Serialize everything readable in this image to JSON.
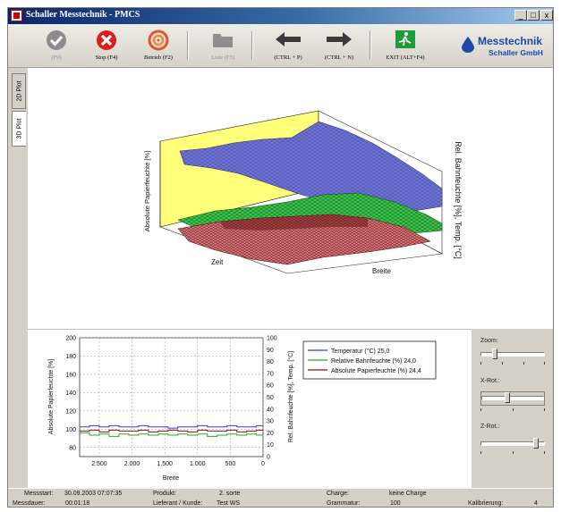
{
  "window": {
    "title": "Schaller Messtechnik - PMCS",
    "controls": [
      "_",
      "□",
      "x"
    ]
  },
  "toolbar": {
    "start_label": "(F9)",
    "stop_label": "Stop (F4)",
    "betrieb_label": "Betrieb (F2)",
    "liste_label": "Liste (F3)",
    "back_label": "(CTRL + P)",
    "forward_label": "(CTRL + N)",
    "exit_label": "EXIT (ALT+F4)"
  },
  "logo": {
    "line1": "Messtechnik",
    "line2": "Schaller GmbH"
  },
  "tabs": [
    "2D Plot",
    "3D Plot"
  ],
  "plot3d": {
    "z_label": "Absolute Papierfeuchte [%]",
    "z_right_label": "Rel. Bahnfeuchte [%], Temp. [°C]",
    "x_label": "Zeit",
    "y_label": "Breite"
  },
  "legend": {
    "temperature": "Temperatur (°C) 25,0",
    "rel_humidity": "Relative Bahnfeuchte (%) 24,0",
    "abs_humidity": "Absolute Papierfeuchte (%) 24,4"
  },
  "controls": {
    "zoom": "Zoom:",
    "xrot": "X-Rot.:",
    "zrot": "Z-Rot.:",
    "zoom_level": 0.2,
    "xrot_level": 0.4,
    "zrot_level": 0.9
  },
  "status": {
    "messstart_label": "Messstart:",
    "messstart": "30.09.2003 07:07:35",
    "messdauer_label": "Messdauer:",
    "messdauer": "00:01:18",
    "produkt_label": "Produkt:",
    "produkt": "2. sorte",
    "lieferant_label": "Lieferant / Kunde:",
    "lieferant": "Test WS",
    "charge_label": "Charge:",
    "charge": "keine Charge",
    "grammatur_label": "Grammatur:",
    "grammatur": "100",
    "kalibrierung_label": "Kalibrierung:",
    "kalibrierung": "4"
  },
  "colors": {
    "temperature": "#3b3bd6",
    "rel_humidity": "#1fae2e",
    "abs_humidity": "#8a1010",
    "plot_yellow": "#ffff7a",
    "blue_surface": "#6f73d8",
    "pink_surface": "#e07a80"
  },
  "chart_data": {
    "type": "line",
    "xlabel": "Breite",
    "ylabel": "Absolute Papierfeuchte [%]",
    "ylabel_right": "Rel. Bahnfeuchte [%], Temp. [°C]",
    "x_ticks": [
      "2.500",
      "2.000",
      "1.500",
      "1.000",
      "500",
      "0"
    ],
    "xlim": [
      2800,
      0
    ],
    "ylim": [
      70,
      200
    ],
    "y_ticks": [
      "80",
      "100",
      "120",
      "140",
      "160",
      "180",
      "200"
    ],
    "ylim_right": [
      0,
      100
    ],
    "y_ticks_right": [
      "0",
      "10",
      "20",
      "30",
      "40",
      "50",
      "60",
      "70",
      "80",
      "90",
      "100"
    ],
    "grid": true,
    "legend_position": "right",
    "series": [
      {
        "name": "Temperatur (°C) 25,0",
        "axis": "right",
        "x": [
          2800,
          2650,
          2500,
          2350,
          2200,
          2050,
          1900,
          1750,
          1600,
          1450,
          1300,
          1150,
          1000,
          850,
          700,
          550,
          400,
          250,
          100,
          0
        ],
        "values": [
          25,
          26,
          25,
          26,
          25,
          25,
          26,
          25,
          25,
          24,
          25,
          25,
          26,
          25,
          25,
          26,
          25,
          25,
          26,
          25
        ]
      },
      {
        "name": "Relative Bahnfeuchte (%) 24,0",
        "axis": "right",
        "x": [
          2800,
          2650,
          2500,
          2350,
          2200,
          2050,
          1900,
          1750,
          1600,
          1450,
          1300,
          1150,
          1000,
          850,
          700,
          550,
          400,
          250,
          100,
          0
        ],
        "values": [
          20,
          18,
          19,
          17,
          19,
          18,
          19,
          18,
          19,
          18,
          19,
          18,
          19,
          17,
          18,
          19,
          18,
          19,
          18,
          19
        ]
      },
      {
        "name": "Absolute Papierfeuchte (%) 24,4",
        "axis": "left",
        "x": [
          2800,
          2650,
          2500,
          2350,
          2200,
          2050,
          1900,
          1750,
          1600,
          1450,
          1300,
          1150,
          1000,
          850,
          700,
          550,
          400,
          250,
          100,
          0
        ],
        "values": [
          98,
          99,
          97,
          99,
          98,
          98,
          99,
          97,
          98,
          99,
          98,
          97,
          99,
          98,
          98,
          99,
          97,
          98,
          99,
          98
        ]
      }
    ]
  }
}
